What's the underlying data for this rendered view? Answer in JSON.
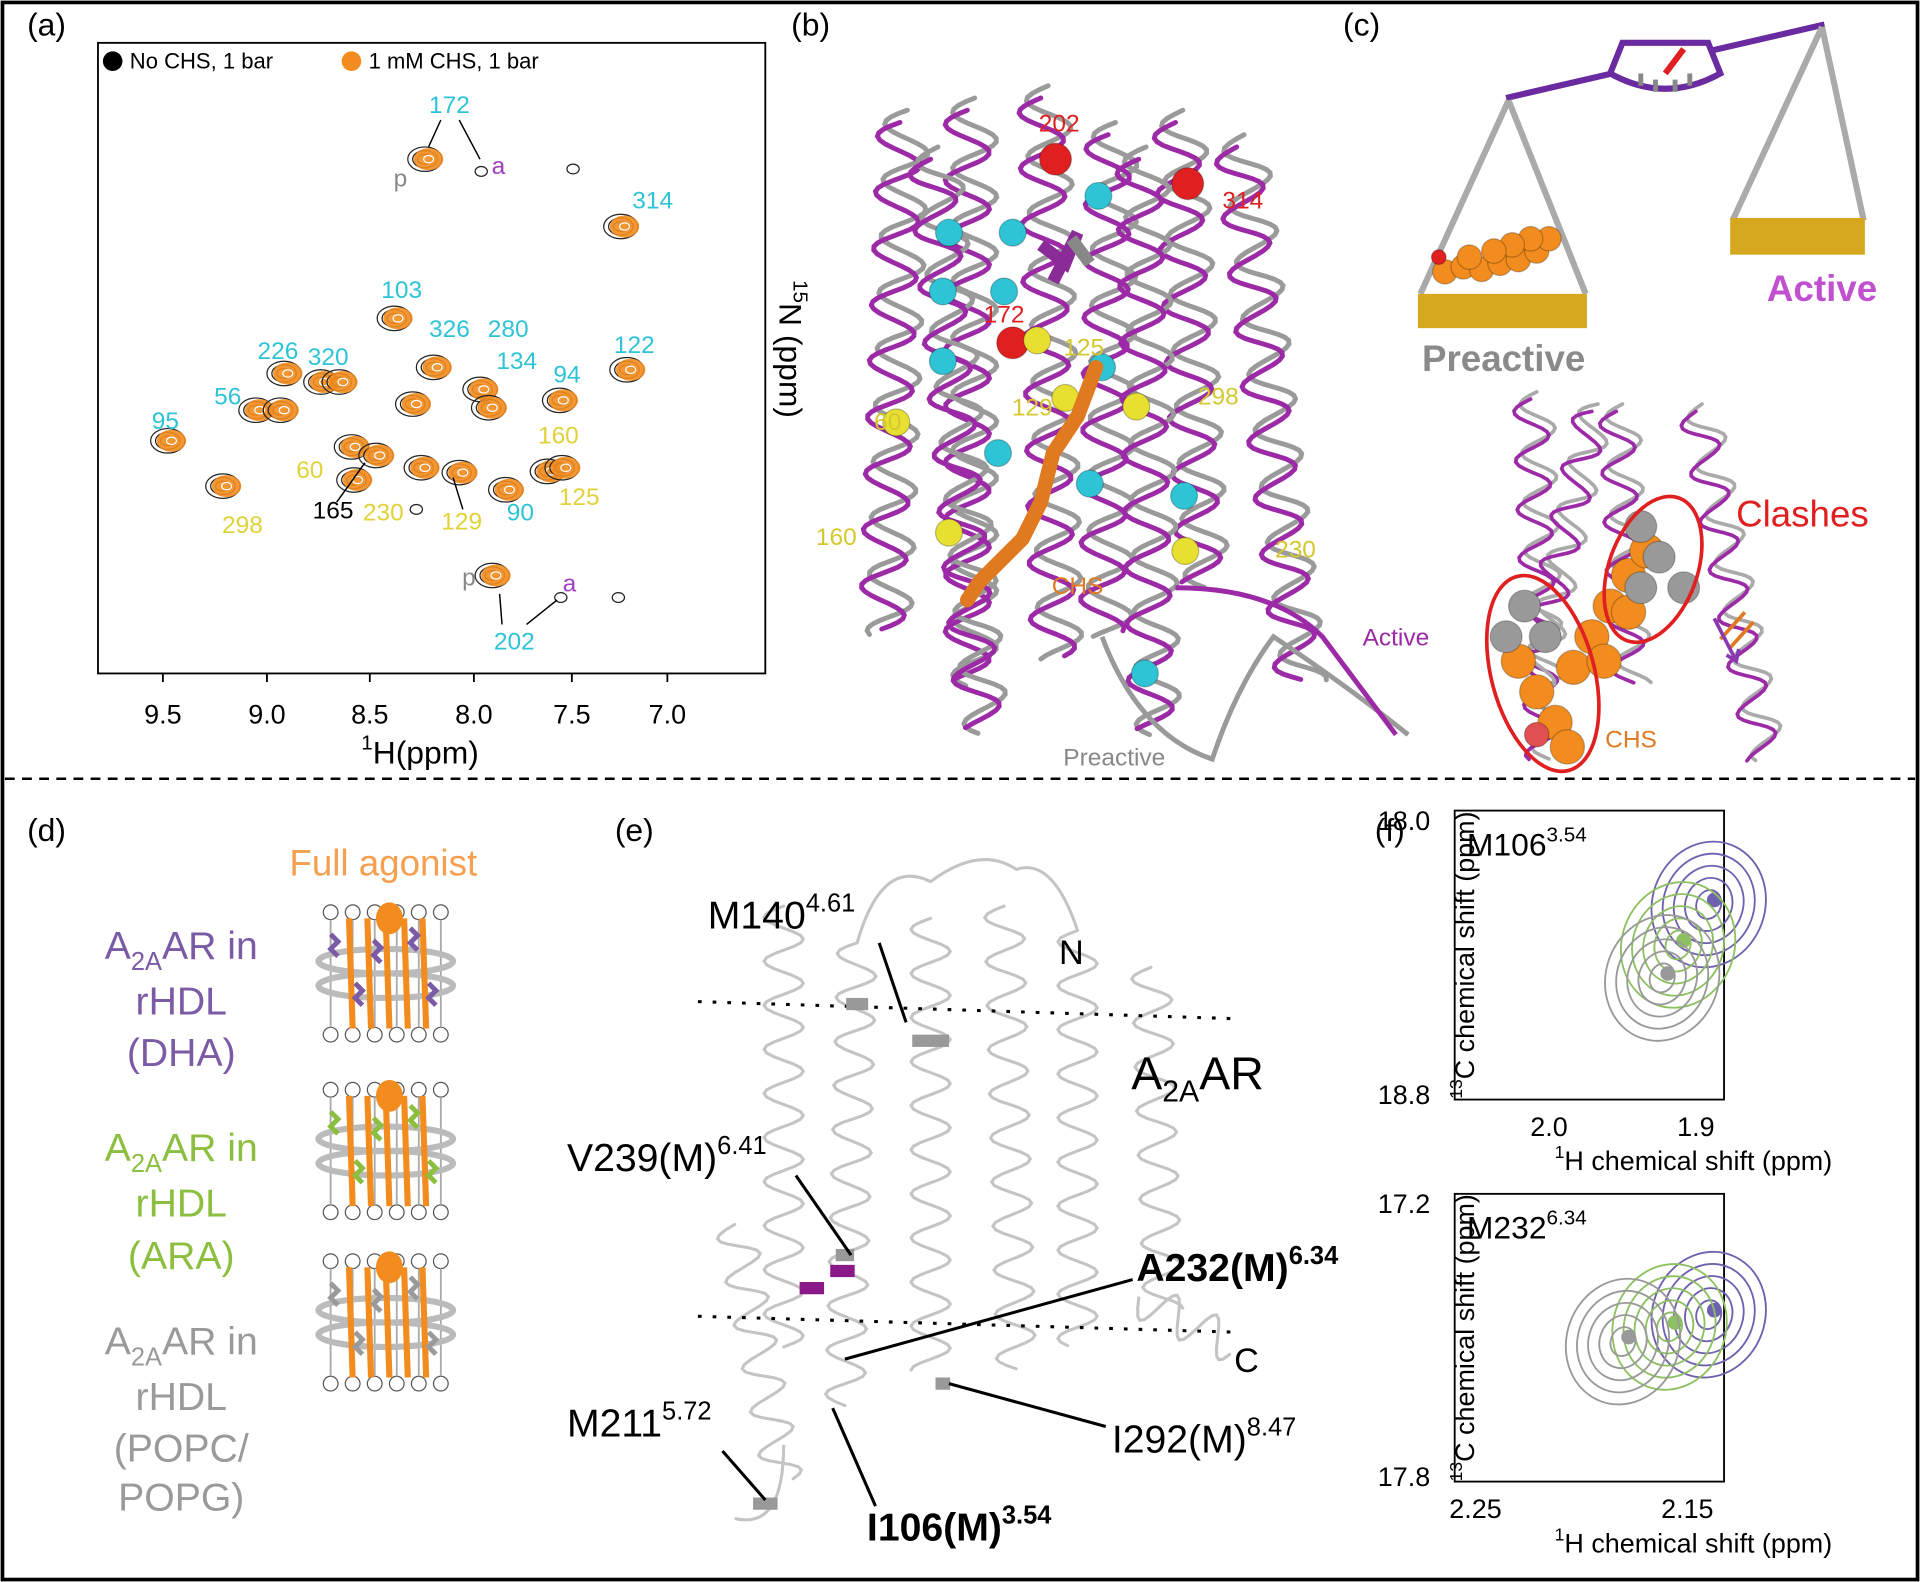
{
  "a": {
    "label": "(a)",
    "legend": [
      {
        "text": "No CHS, 1 bar",
        "color": "#000000"
      },
      {
        "text": "1 mM CHS, 1 bar",
        "color": "#f28c1e"
      }
    ],
    "peak_labels": [
      {
        "text": "172",
        "color": "#2ec4d6"
      },
      {
        "text": "314",
        "color": "#2ec4d6"
      },
      {
        "text": "103",
        "color": "#2ec4d6"
      },
      {
        "text": "326",
        "color": "#2ec4d6"
      },
      {
        "text": "280",
        "color": "#2ec4d6"
      },
      {
        "text": "134",
        "color": "#2ec4d6"
      },
      {
        "text": "94",
        "color": "#2ec4d6"
      },
      {
        "text": "122",
        "color": "#2ec4d6"
      },
      {
        "text": "226",
        "color": "#2ec4d6"
      },
      {
        "text": "320",
        "color": "#2ec4d6"
      },
      {
        "text": "56",
        "color": "#2ec4d6"
      },
      {
        "text": "95",
        "color": "#2ec4d6"
      },
      {
        "text": "90",
        "color": "#2ec4d6"
      },
      {
        "text": "202",
        "color": "#2ec4d6"
      },
      {
        "text": "160",
        "color": "#e0d33a"
      },
      {
        "text": "60",
        "color": "#e0d33a"
      },
      {
        "text": "125",
        "color": "#e0d33a"
      },
      {
        "text": "298",
        "color": "#e0d33a"
      },
      {
        "text": "230",
        "color": "#e0d33a"
      },
      {
        "text": "129",
        "color": "#e0d33a"
      },
      {
        "text": "165",
        "color": "#000000"
      },
      {
        "text": "p",
        "color": "#888888"
      },
      {
        "text": "a",
        "color": "#a040c0"
      },
      {
        "text": "p",
        "color": "#888888"
      },
      {
        "text": "a",
        "color": "#a040c0"
      }
    ],
    "x_ticks": [
      "9.5",
      "9.0",
      "8.5",
      "8.0",
      "7.5",
      "7.0"
    ],
    "x_axis_label": [
      {
        "sup": "1"
      },
      {
        "text": "H(ppm)"
      }
    ],
    "y_axis_label": [
      {
        "sup": "15"
      },
      {
        "text": "N (ppm)"
      }
    ]
  },
  "b": {
    "label": "(b)",
    "residue_labels": [
      {
        "text": "202",
        "color": "#e02020"
      },
      {
        "text": "314",
        "color": "#e02020"
      },
      {
        "text": "172",
        "color": "#e02020"
      },
      {
        "text": "125",
        "color": "#d4c830"
      },
      {
        "text": "129",
        "color": "#d4c830"
      },
      {
        "text": "298",
        "color": "#d4c830"
      },
      {
        "text": "60",
        "color": "#d4c830"
      },
      {
        "text": "160",
        "color": "#d4c830"
      },
      {
        "text": "230",
        "color": "#d4c830"
      }
    ],
    "ligand": "CHS",
    "active": "Active",
    "preactive": "Preactive"
  },
  "c": {
    "label": "(c)",
    "preactive": "Preactive",
    "active": "Active",
    "clashes": "Clashes",
    "ligand": "CHS"
  },
  "d": {
    "label": "(d)",
    "agonist": "Full agonist",
    "groups": [
      {
        "color": "#7b5aa6",
        "lines": [
          [
            {
              "text": "A"
            },
            {
              "sub": "2A"
            },
            {
              "text": "AR in"
            }
          ],
          "rHDL",
          "(DHA)"
        ]
      },
      {
        "color": "#8cbf3f",
        "lines": [
          [
            {
              "text": "A"
            },
            {
              "sub": "2A"
            },
            {
              "text": "AR in"
            }
          ],
          "rHDL",
          "(ARA)"
        ]
      },
      {
        "color": "#9a9a9a",
        "lines": [
          [
            {
              "text": "A"
            },
            {
              "sub": "2A"
            },
            {
              "text": "AR in"
            }
          ],
          "rHDL",
          "(POPC/",
          "POPG)"
        ]
      }
    ]
  },
  "e": {
    "label": "(e)",
    "residues": [
      [
        {
          "text": "M140"
        },
        {
          "sup": "4.61"
        }
      ],
      [
        {
          "text": "V239(M)"
        },
        {
          "sup": "6.41"
        }
      ],
      [
        {
          "text": "A232(M)"
        },
        {
          "sup": "6.34"
        }
      ],
      [
        {
          "text": "M211"
        },
        {
          "sup": "5.72"
        }
      ],
      [
        {
          "text": "I292(M)"
        },
        {
          "sup": "8.47"
        }
      ],
      [
        {
          "text": "I106(M)"
        },
        {
          "sup": "3.54"
        }
      ]
    ],
    "n_term": "N",
    "c_term": "C",
    "protein": [
      {
        "text": "A"
      },
      {
        "sub": "2A"
      },
      {
        "text": "AR"
      }
    ]
  },
  "f": {
    "label": "(f)",
    "plots": [
      {
        "title": [
          {
            "text": "M106"
          },
          {
            "sup": "3.54"
          }
        ],
        "y_ticks": [
          "18.0",
          "18.8"
        ],
        "x_ticks": [
          "2.0",
          "1.9"
        ],
        "y_axis_label": [
          {
            "sup": "13"
          },
          {
            "text": "C chemical shift (ppm)"
          }
        ],
        "x_axis_label": [
          {
            "sup": "1"
          },
          {
            "text": "H chemical shift (ppm)"
          }
        ]
      },
      {
        "title": [
          {
            "text": "M232"
          },
          {
            "sup": "6.34"
          }
        ],
        "y_ticks": [
          "17.2",
          "17.8"
        ],
        "x_ticks": [
          "2.25",
          "2.15"
        ],
        "y_axis_label": [
          {
            "sup": "13"
          },
          {
            "text": "C chemical shift (ppm)"
          }
        ],
        "x_axis_label": [
          {
            "sup": "1"
          },
          {
            "text": "H chemical shift (ppm)"
          }
        ]
      }
    ]
  }
}
